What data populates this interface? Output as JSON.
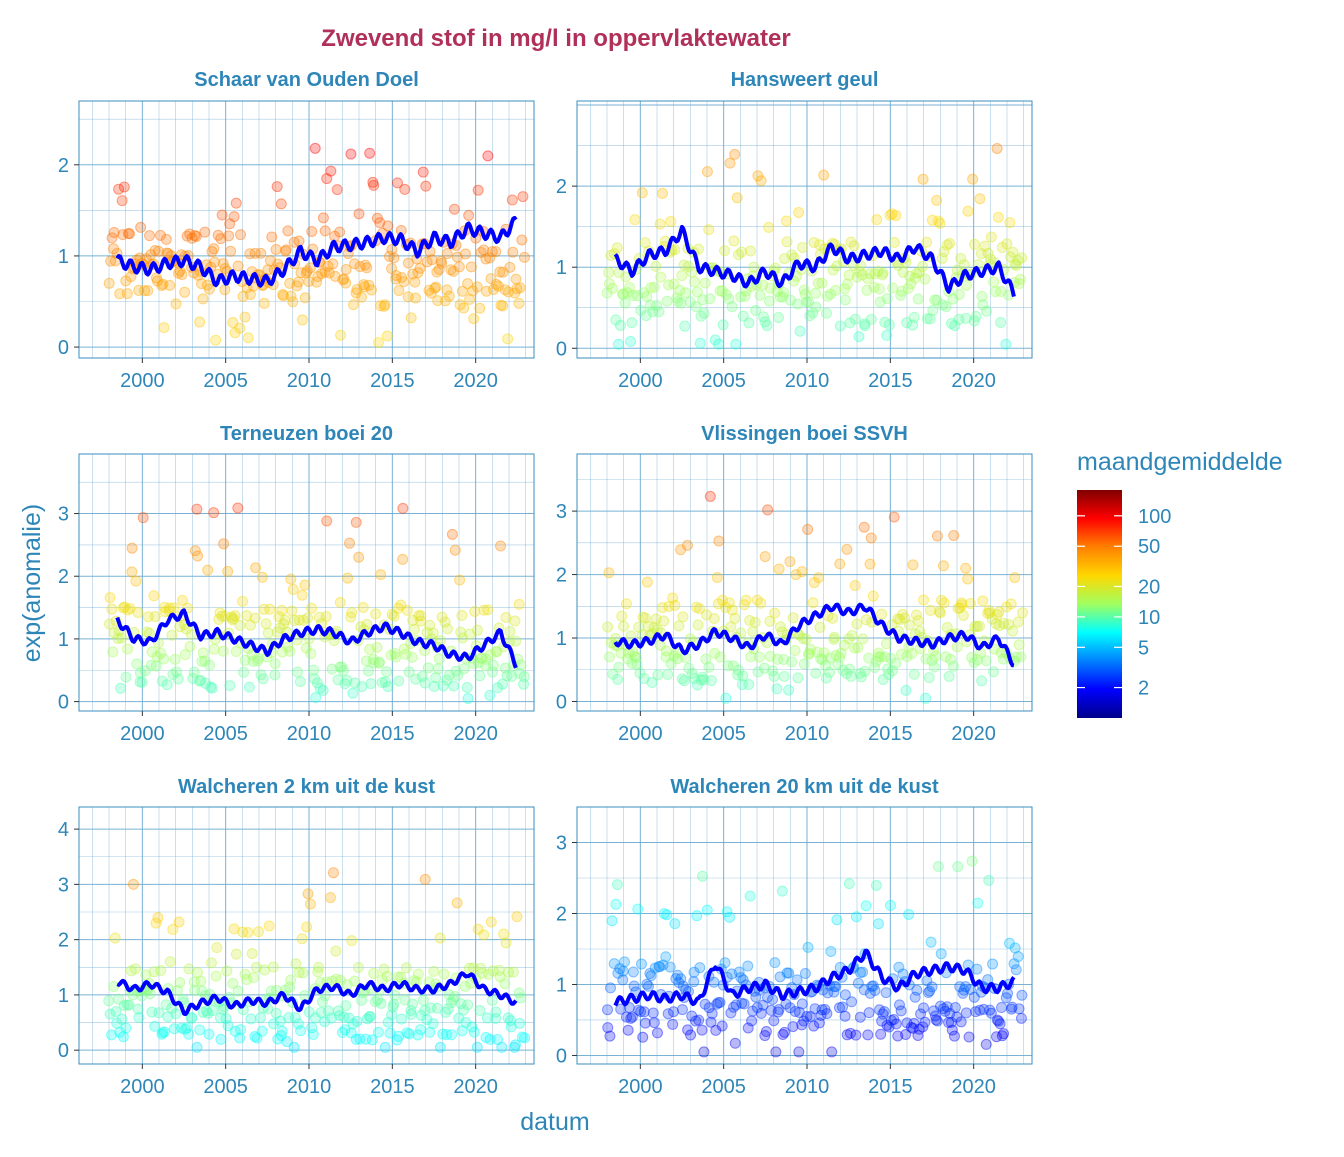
{
  "title": "Zwevend stof in mg/l in oppervlaktewater",
  "xlabel": "datum",
  "ylabel": "exp(anomalie)",
  "colors": {
    "title": "#b0305a",
    "axis_text": "#2e86b8",
    "strip_text": "#2e86b8",
    "panel_border": "#3a8fbf",
    "grid": "#6aaad1",
    "trend_line": "#0000ff"
  },
  "legend": {
    "title": "maandgemiddelde",
    "ticks": [
      "100",
      "50",
      "20",
      "10",
      "5",
      "2"
    ],
    "tick_values": [
      100,
      50,
      20,
      10,
      5,
      2
    ],
    "range": [
      1,
      180
    ],
    "scale": "log",
    "palette": [
      "#800000",
      "#ff0000",
      "#ff8000",
      "#ffd700",
      "#a0ff60",
      "#00ffff",
      "#0080ff",
      "#0000ff",
      "#00008b"
    ]
  },
  "chart_data": [
    {
      "type": "scatter",
      "panel": "Schaar van Ouden Doel",
      "xlim": [
        1996.2,
        2023.5
      ],
      "ylim": [
        -0.12,
        2.7
      ],
      "x_ticks": [
        2000,
        2005,
        2010,
        2015,
        2020
      ],
      "y_ticks": [
        0,
        1,
        2
      ],
      "trend": {
        "name": "",
        "x": [
          1998.5,
          1999.5,
          2000.5,
          2001.5,
          2002.5,
          2003.5,
          2004.5,
          2005.5,
          2006.5,
          2007.5,
          2008.5,
          2009.5,
          2010.5,
          2011.5,
          2012.5,
          2013.5,
          2014.5,
          2015.5,
          2016.5,
          2017.5,
          2018.5,
          2019.5,
          2020.5,
          2021.5,
          2022.5
        ],
        "y": [
          0.95,
          0.88,
          0.85,
          0.92,
          0.95,
          0.88,
          0.72,
          0.78,
          0.75,
          0.72,
          0.85,
          1.05,
          0.95,
          1.1,
          1.12,
          1.15,
          1.2,
          1.18,
          1.05,
          1.2,
          1.15,
          1.3,
          1.25,
          1.2,
          1.4
        ]
      },
      "points": {
        "x_range": [
          1998.0,
          2023.0
        ],
        "y_levels": [
          0.55,
          0.75,
          1.0,
          1.3,
          1.7,
          2.1
        ],
        "color_min": 25,
        "color_max": 120
      }
    },
    {
      "type": "scatter",
      "panel": "Hansweert geul",
      "xlim": [
        1996.2,
        2023.5
      ],
      "ylim": [
        -0.12,
        3.05
      ],
      "x_ticks": [
        2000,
        2005,
        2010,
        2015,
        2020
      ],
      "y_ticks": [
        0,
        1,
        2
      ],
      "trend": {
        "name": "",
        "x": [
          1998.5,
          1999.5,
          2000.5,
          2001.5,
          2002.5,
          2003.5,
          2004.5,
          2005.5,
          2006.5,
          2007.5,
          2008.5,
          2009.5,
          2010.5,
          2011.5,
          2012.5,
          2013.5,
          2014.5,
          2015.5,
          2016.5,
          2017.5,
          2018.5,
          2019.5,
          2020.5,
          2021.5,
          2022.5
        ],
        "y": [
          1.1,
          0.95,
          1.15,
          1.2,
          1.45,
          1.0,
          0.95,
          0.9,
          0.8,
          0.95,
          0.8,
          1.05,
          1.0,
          1.25,
          1.1,
          1.15,
          1.2,
          1.1,
          1.25,
          1.1,
          0.75,
          0.9,
          0.95,
          1.0,
          0.65
        ]
      },
      "points": {
        "x_range": [
          1998.0,
          2023.0
        ],
        "y_levels": [
          0.4,
          0.7,
          1.0,
          1.4,
          1.9,
          2.4
        ],
        "color_min": 8,
        "color_max": 60
      }
    },
    {
      "type": "scatter",
      "panel": "Terneuzen boei 20",
      "xlim": [
        1996.2,
        2023.5
      ],
      "ylim": [
        -0.15,
        3.95
      ],
      "x_ticks": [
        2000,
        2005,
        2010,
        2015,
        2020
      ],
      "y_ticks": [
        0,
        1,
        2,
        3
      ],
      "trend": {
        "name": "",
        "x": [
          1998.5,
          1999.5,
          2000.5,
          2001.5,
          2002.5,
          2003.5,
          2004.5,
          2005.5,
          2006.5,
          2007.5,
          2008.5,
          2009.5,
          2010.5,
          2011.5,
          2012.5,
          2013.5,
          2014.5,
          2015.5,
          2016.5,
          2017.5,
          2018.5,
          2019.5,
          2020.5,
          2021.5,
          2022.5
        ],
        "y": [
          1.3,
          1.0,
          0.95,
          1.3,
          1.4,
          1.05,
          1.1,
          1.0,
          0.9,
          0.8,
          1.0,
          1.1,
          1.15,
          1.1,
          0.95,
          1.1,
          1.2,
          1.1,
          0.95,
          0.9,
          0.75,
          0.7,
          0.9,
          1.1,
          0.55
        ]
      },
      "points": {
        "x_range": [
          1998.0,
          2023.0
        ],
        "y_levels": [
          0.3,
          0.7,
          1.2,
          1.7,
          2.3,
          3.0
        ],
        "color_min": 8,
        "color_max": 90
      }
    },
    {
      "type": "scatter",
      "panel": "Vlissingen boei SSVH",
      "xlim": [
        1996.2,
        2023.5
      ],
      "ylim": [
        -0.15,
        3.9
      ],
      "x_ticks": [
        2000,
        2005,
        2010,
        2015,
        2020
      ],
      "y_ticks": [
        0,
        1,
        2,
        3
      ],
      "trend": {
        "name": "",
        "x": [
          1998.5,
          1999.5,
          2000.5,
          2001.5,
          2002.5,
          2003.5,
          2004.5,
          2005.5,
          2006.5,
          2007.5,
          2008.5,
          2009.5,
          2010.5,
          2011.5,
          2012.5,
          2013.5,
          2014.5,
          2015.5,
          2016.5,
          2017.5,
          2018.5,
          2019.5,
          2020.5,
          2021.5,
          2022.5
        ],
        "y": [
          0.95,
          0.9,
          0.95,
          1.05,
          0.8,
          0.9,
          1.1,
          1.0,
          0.85,
          1.05,
          0.9,
          1.2,
          1.35,
          1.5,
          1.4,
          1.5,
          1.2,
          1.0,
          0.95,
          0.9,
          1.0,
          1.05,
          0.85,
          1.0,
          0.55
        ]
      },
      "points": {
        "x_range": [
          1998.0,
          2023.0
        ],
        "y_levels": [
          0.4,
          0.8,
          1.3,
          1.8,
          2.4,
          3.1
        ],
        "color_min": 8,
        "color_max": 90
      }
    },
    {
      "type": "scatter",
      "panel": "Walcheren 2 km uit de kust",
      "xlim": [
        1996.2,
        2023.5
      ],
      "ylim": [
        -0.25,
        4.4
      ],
      "x_ticks": [
        2000,
        2005,
        2010,
        2015,
        2020
      ],
      "y_ticks": [
        0,
        1,
        2,
        3,
        4
      ],
      "trend": {
        "name": "",
        "x": [
          1998.5,
          1999.5,
          2000.5,
          2001.5,
          2002.5,
          2003.5,
          2004.5,
          2005.5,
          2006.5,
          2007.5,
          2008.5,
          2009.5,
          2010.5,
          2011.5,
          2012.5,
          2013.5,
          2014.5,
          2015.5,
          2016.5,
          2017.5,
          2018.5,
          2019.5,
          2020.5,
          2021.5,
          2022.5
        ],
        "y": [
          1.25,
          1.1,
          1.2,
          1.05,
          0.7,
          0.85,
          0.95,
          0.8,
          0.9,
          0.85,
          1.0,
          0.75,
          1.1,
          1.15,
          1.0,
          1.2,
          1.1,
          1.2,
          1.1,
          1.1,
          1.2,
          1.4,
          1.1,
          1.0,
          0.85
        ]
      },
      "points": {
        "x_range": [
          1998.0,
          2023.0
        ],
        "y_levels": [
          0.3,
          0.7,
          1.2,
          1.8,
          2.6,
          3.4
        ],
        "color_min": 6,
        "color_max": 70
      }
    },
    {
      "type": "scatter",
      "panel": "Walcheren 20 km uit de kust",
      "xlim": [
        1996.2,
        2023.5
      ],
      "ylim": [
        -0.12,
        3.5
      ],
      "x_ticks": [
        2000,
        2005,
        2010,
        2015,
        2020
      ],
      "y_ticks": [
        0,
        1,
        2,
        3
      ],
      "trend": {
        "name": "",
        "x": [
          1998.5,
          1999.5,
          2000.5,
          2001.5,
          2002.5,
          2003.5,
          2004.5,
          2005.5,
          2006.5,
          2007.5,
          2008.5,
          2009.5,
          2010.5,
          2011.5,
          2012.5,
          2013.5,
          2014.5,
          2015.5,
          2016.5,
          2017.5,
          2018.5,
          2019.5,
          2020.5,
          2021.5,
          2022.5
        ],
        "y": [
          0.75,
          0.8,
          0.85,
          0.8,
          0.85,
          0.75,
          1.3,
          0.85,
          0.95,
          1.0,
          0.85,
          0.9,
          0.95,
          1.1,
          1.2,
          1.45,
          1.1,
          0.95,
          1.15,
          1.2,
          1.25,
          1.2,
          0.95,
          0.95,
          1.05
        ]
      },
      "points": {
        "x_range": [
          1998.0,
          2023.0
        ],
        "y_levels": [
          0.4,
          0.7,
          1.0,
          1.5,
          2.2,
          2.9
        ],
        "color_min": 1.5,
        "color_max": 18
      }
    }
  ]
}
